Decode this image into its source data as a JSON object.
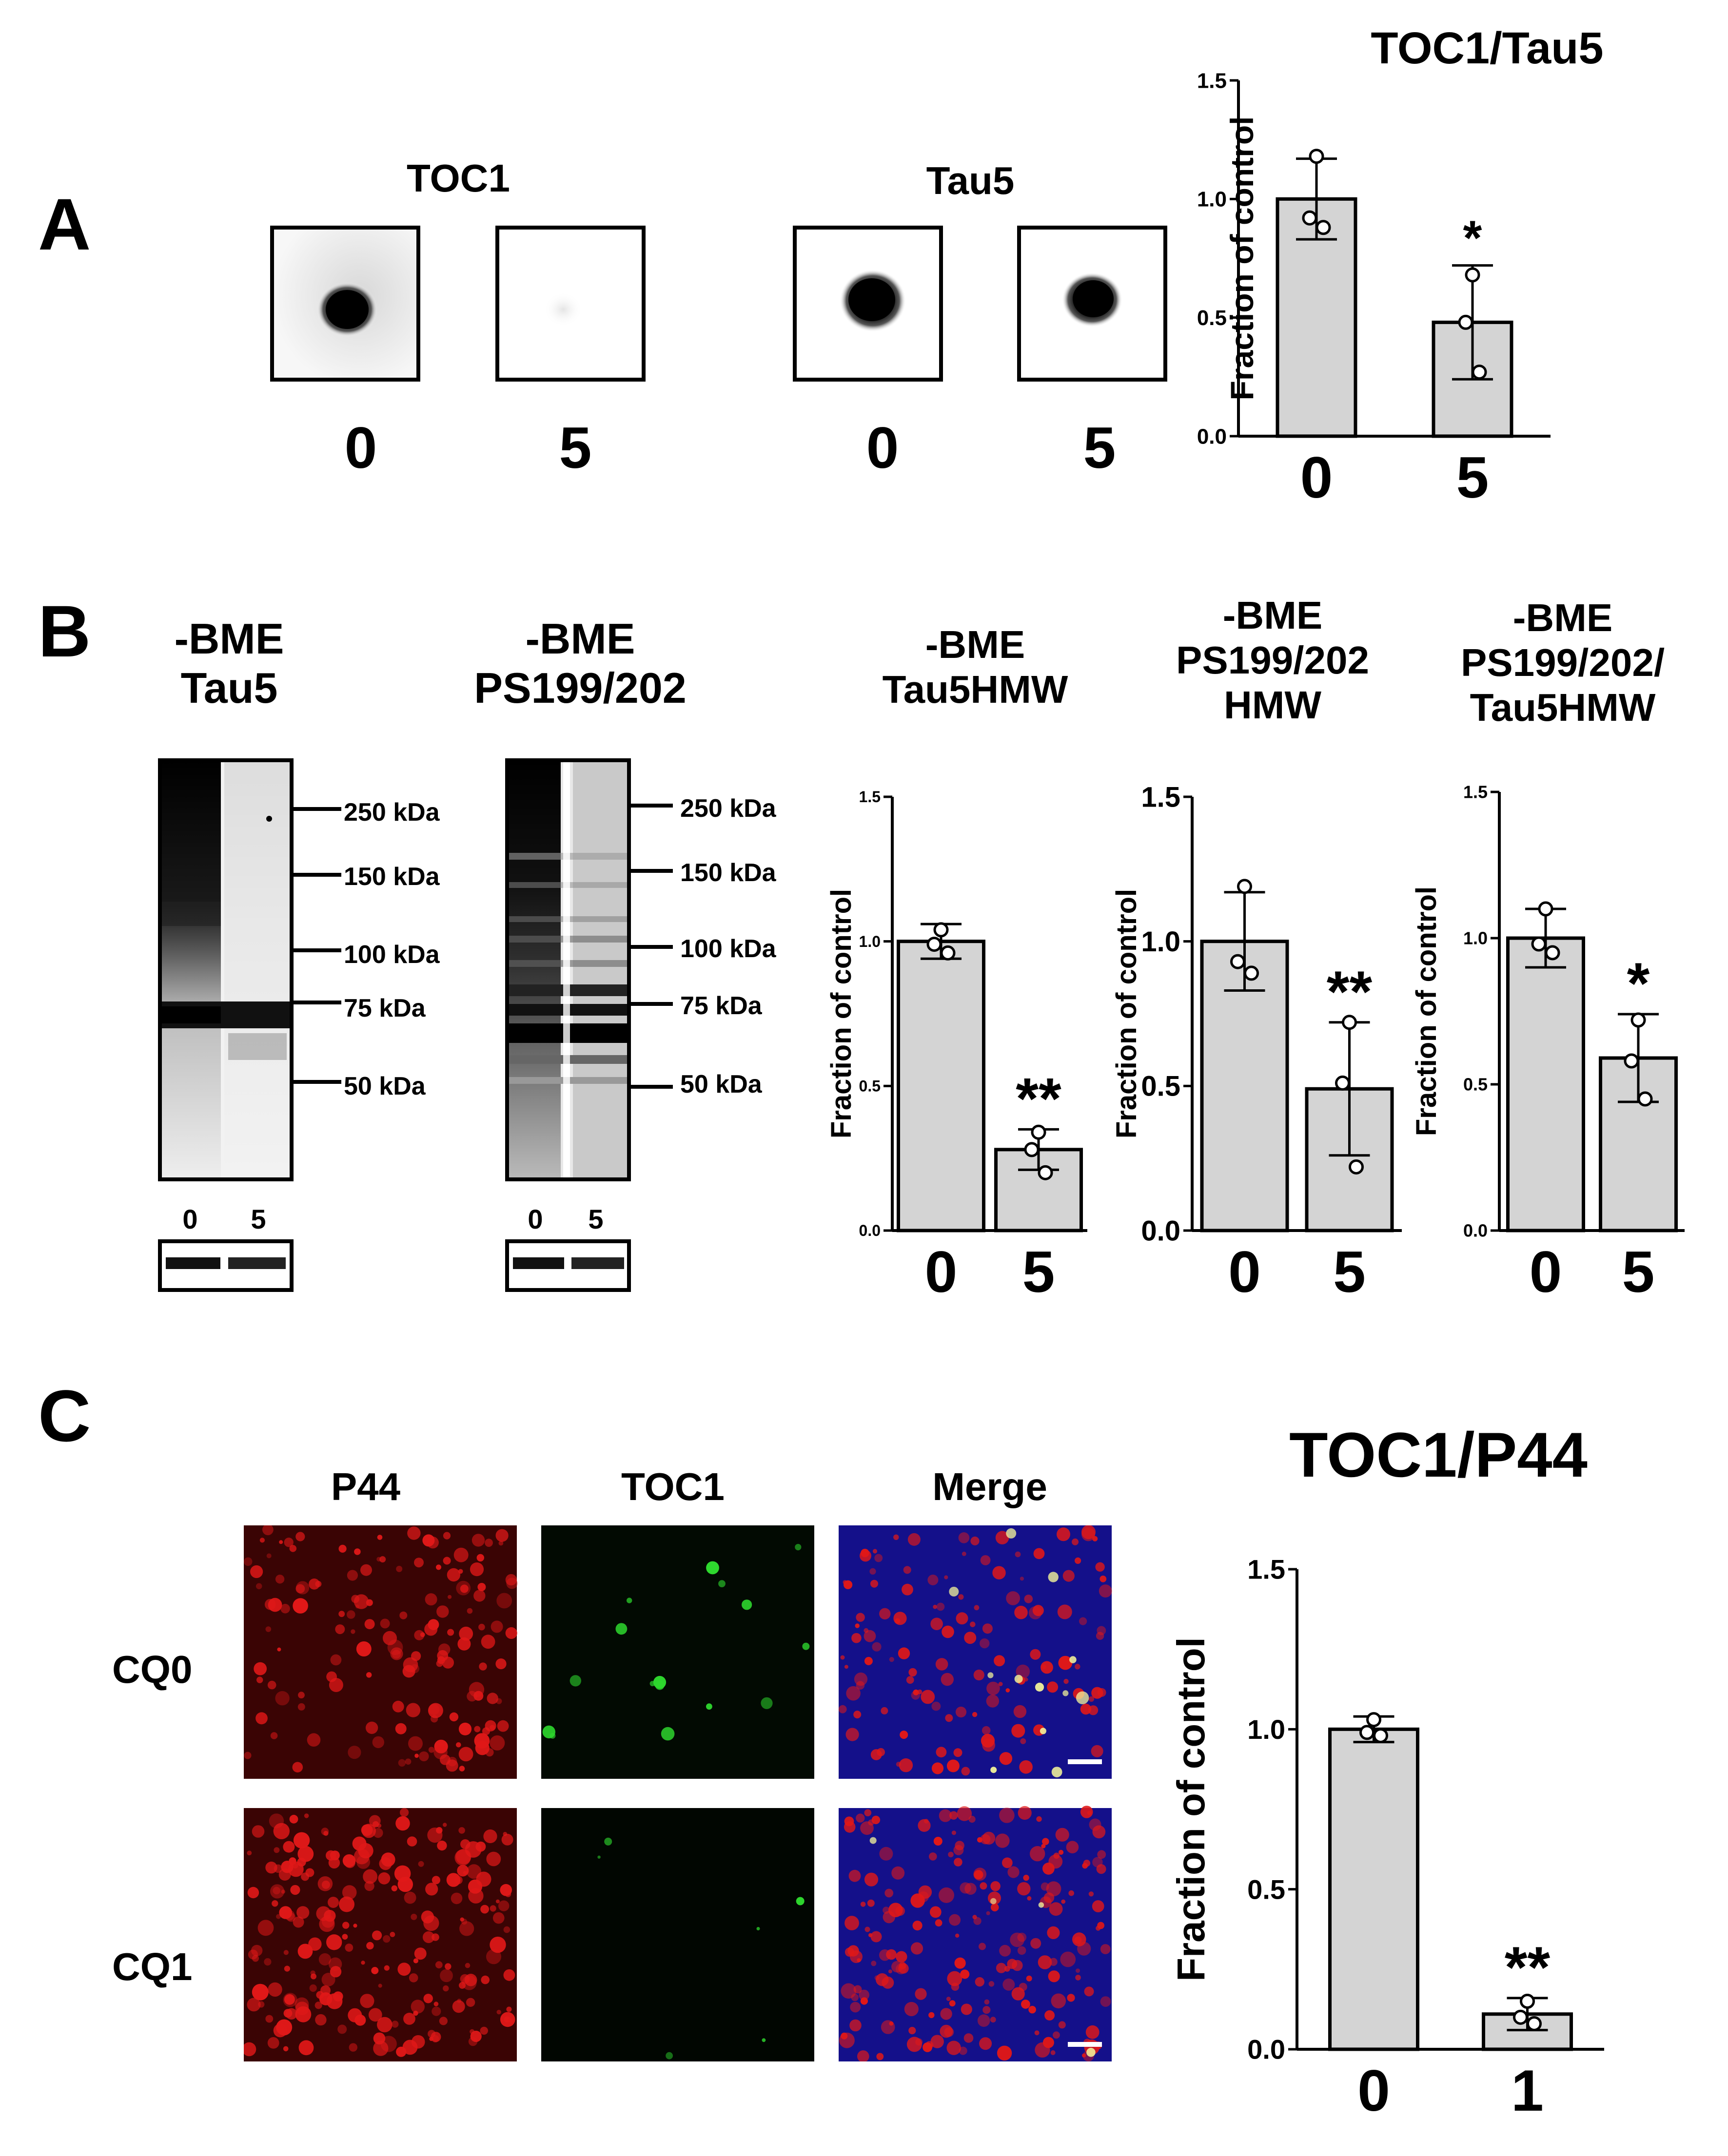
{
  "panel_letters": {
    "a": "A",
    "b": "B",
    "c": "C"
  },
  "panelA": {
    "blots": [
      {
        "title": "TOC1",
        "lanes": [
          "0",
          "5"
        ]
      },
      {
        "title": "Tau5",
        "lanes": [
          "0",
          "5"
        ]
      }
    ]
  },
  "panelB": {
    "gels": [
      {
        "title_line1": "-BME",
        "title_line2": "Tau5",
        "lanes": [
          "0",
          "5"
        ]
      },
      {
        "title_line1": "-BME",
        "title_line2": "PS199/202",
        "lanes": [
          "0",
          "5"
        ]
      }
    ],
    "markers_left": [
      "250 kDa",
      "150 kDa",
      "100 kDa",
      "75 kDa",
      "50 kDa"
    ],
    "markers_right": [
      "250 kDa",
      "150 kDa",
      "100 kDa",
      "75 kDa",
      "50 kDa"
    ]
  },
  "panelC": {
    "columns": [
      "P44",
      "TOC1",
      "Merge"
    ],
    "rows": [
      "CQ0",
      "CQ1"
    ]
  },
  "colors": {
    "bar_fill": "#d4d4d4",
    "red": "#e01818",
    "green": "#2ed82e",
    "blue": "#2020c8"
  },
  "chart_data": [
    {
      "id": "A",
      "type": "bar",
      "title": "TOC1/Tau5",
      "ylabel": "Fraction of control",
      "categories": [
        "0",
        "5"
      ],
      "values": [
        1.0,
        0.48
      ],
      "errors": [
        0.17,
        0.24
      ],
      "points": [
        [
          1.18,
          0.92,
          0.88
        ],
        [
          0.68,
          0.48,
          0.27
        ]
      ],
      "ylim": [
        0,
        1.5
      ],
      "yticks": [
        "0.0",
        "0.5",
        "1.0",
        "1.5"
      ],
      "significance": [
        "",
        "*"
      ]
    },
    {
      "id": "B1",
      "type": "bar",
      "title_lines": [
        "-BME",
        "Tau5HMW"
      ],
      "ylabel": "Fraction of control",
      "categories": [
        "0",
        "5"
      ],
      "values": [
        1.0,
        0.28
      ],
      "errors": [
        0.06,
        0.07
      ],
      "points": [
        [
          1.04,
          0.99,
          0.96
        ],
        [
          0.34,
          0.28,
          0.2
        ]
      ],
      "ylim": [
        0,
        1.5
      ],
      "yticks": [
        "0.0",
        "0.5",
        "1.0",
        "1.5"
      ],
      "significance": [
        "",
        "**"
      ]
    },
    {
      "id": "B2",
      "type": "bar",
      "title_lines": [
        "-BME",
        "PS199/202",
        "HMW"
      ],
      "ylabel": "Fraction of control",
      "categories": [
        "0",
        "5"
      ],
      "values": [
        1.0,
        0.49
      ],
      "errors": [
        0.17,
        0.23
      ],
      "points": [
        [
          1.19,
          0.93,
          0.89
        ],
        [
          0.72,
          0.51,
          0.22
        ]
      ],
      "ylim": [
        0,
        1.5
      ],
      "yticks": [
        "0.0",
        "0.5",
        "1.0",
        "1.5"
      ],
      "significance": [
        "",
        "**"
      ]
    },
    {
      "id": "B3",
      "type": "bar",
      "title_lines": [
        "-BME",
        "PS199/202/",
        "Tau5HMW"
      ],
      "ylabel": "Fraction of control",
      "categories": [
        "0",
        "5"
      ],
      "values": [
        1.0,
        0.59
      ],
      "errors": [
        0.1,
        0.15
      ],
      "points": [
        [
          1.1,
          0.98,
          0.95
        ],
        [
          0.72,
          0.58,
          0.45
        ]
      ],
      "ylim": [
        0,
        1.5
      ],
      "yticks": [
        "0.0",
        "0.5",
        "1.0",
        "1.5"
      ],
      "significance": [
        "",
        "*"
      ]
    },
    {
      "id": "C",
      "type": "bar",
      "title": "TOC1/P44",
      "ylabel": "Fraction of control",
      "categories": [
        "0",
        "1"
      ],
      "values": [
        1.0,
        0.11
      ],
      "errors": [
        0.04,
        0.05
      ],
      "points": [
        [
          1.03,
          0.99,
          0.98
        ],
        [
          0.15,
          0.1,
          0.08
        ]
      ],
      "ylim": [
        0,
        1.5
      ],
      "yticks": [
        "0.0",
        "0.5",
        "1.0",
        "1.5"
      ],
      "significance": [
        "",
        "**"
      ]
    }
  ]
}
